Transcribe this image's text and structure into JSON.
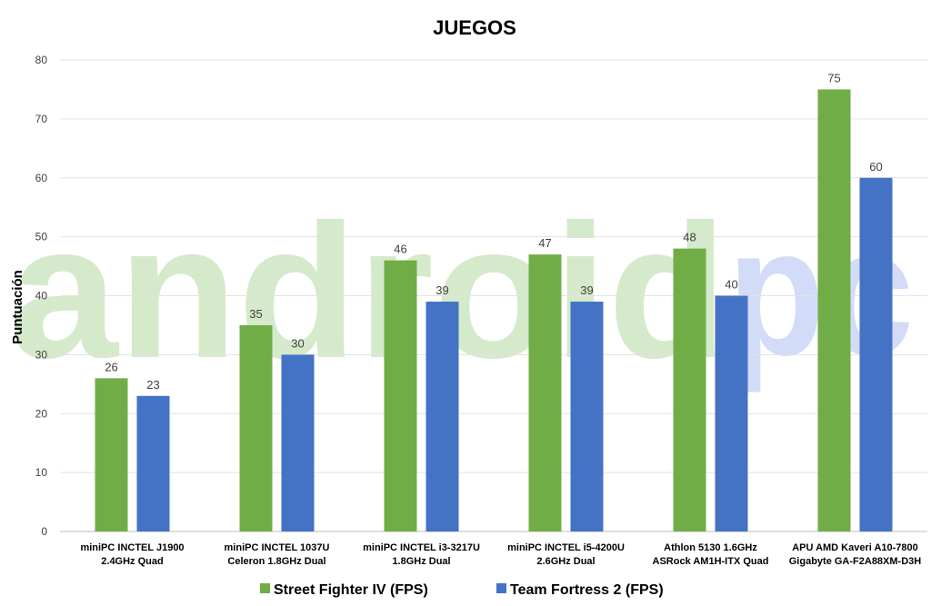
{
  "chart_data": {
    "type": "bar",
    "title": "JUEGOS",
    "xlabel": "",
    "ylabel": "Puntuación",
    "ylim": [
      0,
      80
    ],
    "yticks": [
      0,
      10,
      20,
      30,
      40,
      50,
      60,
      70,
      80
    ],
    "grid": true,
    "legend_position": "bottom",
    "categories": [
      [
        "miniPC INCTEL J1900",
        "2.4GHz Quad"
      ],
      [
        "miniPC INCTEL 1037U",
        "Celeron 1.8GHz Dual"
      ],
      [
        "miniPC INCTEL i3-3217U",
        "1.8GHz Dual"
      ],
      [
        "miniPC INCTEL i5-4200U",
        "2.6GHz Dual"
      ],
      [
        "Athlon 5130 1.6GHz",
        "ASRock AM1H-ITX Quad"
      ],
      [
        "APU AMD Kaveri A10-7800",
        "Gigabyte GA-F2A88XM-D3H"
      ]
    ],
    "series": [
      {
        "name": "Street Fighter IV (FPS)",
        "color": "#70ad47",
        "values": [
          26,
          35,
          46,
          47,
          48,
          75
        ]
      },
      {
        "name": "Team Fortress 2 (FPS)",
        "color": "#4472c4",
        "values": [
          23,
          30,
          39,
          39,
          40,
          60
        ]
      }
    ]
  },
  "watermark": {
    "text_main": "android",
    "text_accent": "pc",
    "color_main": "#d5eacb",
    "color_accent": "#d2dbf7"
  }
}
